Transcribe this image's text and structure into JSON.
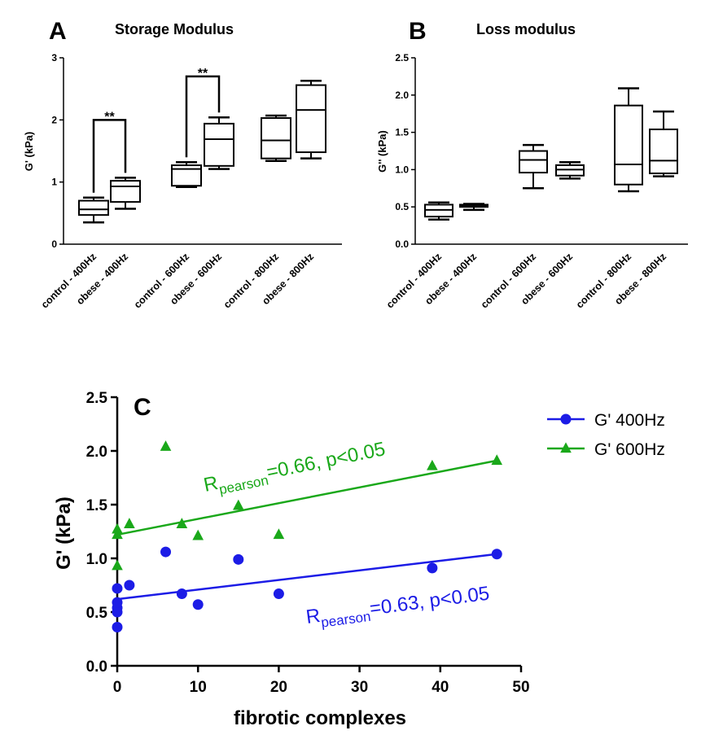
{
  "colors": {
    "g400": "#1c1ce6",
    "g600": "#1aa81a",
    "axis": "#000000"
  },
  "chart_data": [
    {
      "type": "box",
      "panel_letter": "A",
      "title": "Storage Modulus",
      "ylabel": "G' (kPa)",
      "ylim": [
        0,
        3
      ],
      "yticks": [
        0,
        1,
        2,
        3
      ],
      "ytick_labels": [
        "0",
        "1",
        "2",
        "3"
      ],
      "categories": [
        "control - 400Hz",
        "obese - 400Hz",
        "control - 600Hz",
        "obese - 600Hz",
        "control - 800Hz",
        "obese - 800Hz"
      ],
      "boxes": [
        {
          "min": 0.35,
          "q1": 0.47,
          "median": 0.56,
          "q3": 0.7,
          "max": 0.75
        },
        {
          "min": 0.57,
          "q1": 0.68,
          "median": 0.93,
          "q3": 1.02,
          "max": 1.07
        },
        {
          "min": 0.92,
          "q1": 0.94,
          "median": 1.21,
          "q3": 1.27,
          "max": 1.32
        },
        {
          "min": 1.21,
          "q1": 1.26,
          "median": 1.69,
          "q3": 1.94,
          "max": 2.04
        },
        {
          "min": 1.34,
          "q1": 1.38,
          "median": 1.67,
          "q3": 2.03,
          "max": 2.07
        },
        {
          "min": 1.38,
          "q1": 1.48,
          "median": 2.16,
          "q3": 2.56,
          "max": 2.63
        }
      ],
      "significance": [
        {
          "from": 0,
          "to": 1,
          "label": "**",
          "y": 2.0
        },
        {
          "from": 2,
          "to": 3,
          "label": "**",
          "y": 2.7
        }
      ]
    },
    {
      "type": "box",
      "panel_letter": "B",
      "title": "Loss modulus",
      "ylabel": "G'' (kPa)",
      "ylim": [
        0,
        2.5
      ],
      "yticks": [
        0,
        0.5,
        1.0,
        1.5,
        2.0,
        2.5
      ],
      "ytick_labels": [
        "0.0",
        "0.5",
        "1.0",
        "1.5",
        "2.0",
        "2.5"
      ],
      "categories": [
        "control - 400Hz",
        "obese - 400Hz",
        "control - 600Hz",
        "obese - 600Hz",
        "control - 800Hz",
        "obese - 800Hz"
      ],
      "boxes": [
        {
          "min": 0.33,
          "q1": 0.37,
          "median": 0.46,
          "q3": 0.53,
          "max": 0.56
        },
        {
          "min": 0.46,
          "q1": 0.5,
          "median": 0.52,
          "q3": 0.53,
          "max": 0.54
        },
        {
          "min": 0.75,
          "q1": 0.96,
          "median": 1.13,
          "q3": 1.25,
          "max": 1.33
        },
        {
          "min": 0.88,
          "q1": 0.92,
          "median": 1.0,
          "q3": 1.06,
          "max": 1.1
        },
        {
          "min": 0.71,
          "q1": 0.8,
          "median": 1.07,
          "q3": 1.86,
          "max": 2.09
        },
        {
          "min": 0.91,
          "q1": 0.95,
          "median": 1.12,
          "q3": 1.54,
          "max": 1.78
        }
      ]
    },
    {
      "type": "scatter",
      "panel_letter": "C",
      "xlabel": "fibrotic complexes",
      "ylabel": "G' (kPa)",
      "xlim": [
        0,
        50
      ],
      "ylim": [
        0,
        2.5
      ],
      "xticks": [
        0,
        10,
        20,
        30,
        40,
        50
      ],
      "xtick_labels": [
        "0",
        "10",
        "20",
        "30",
        "40",
        "50"
      ],
      "yticks": [
        0,
        0.5,
        1.0,
        1.5,
        2.0,
        2.5
      ],
      "ytick_labels": [
        "0.0",
        "0.5",
        "1.0",
        "1.5",
        "2.0",
        "2.5"
      ],
      "legend_position": "top-right",
      "series": [
        {
          "name": "G' 400Hz",
          "marker": "circle",
          "color_key": "g400",
          "x": [
            0,
            0,
            0,
            0,
            0,
            1.5,
            6,
            8,
            10,
            15,
            20,
            39,
            47
          ],
          "y": [
            0.36,
            0.5,
            0.54,
            0.59,
            0.72,
            0.75,
            1.06,
            0.67,
            0.57,
            0.99,
            0.67,
            0.91,
            1.04
          ],
          "fit": {
            "x": [
              0,
              47
            ],
            "y": [
              0.62,
              1.04
            ]
          },
          "annotation": {
            "prefix": "R",
            "subscript": "pearson",
            "text": "=0.63, p<0.05"
          }
        },
        {
          "name": "G' 600Hz",
          "marker": "triangle",
          "color_key": "g600",
          "x": [
            0,
            0,
            0,
            1.5,
            6,
            8,
            10,
            15,
            20,
            39,
            47
          ],
          "y": [
            0.93,
            1.22,
            1.27,
            1.32,
            2.04,
            1.32,
            1.21,
            1.49,
            1.22,
            1.86,
            1.91
          ],
          "fit": {
            "x": [
              0,
              47
            ],
            "y": [
              1.22,
              1.91
            ]
          },
          "annotation": {
            "prefix": "R",
            "subscript": "pearson",
            "text": "=0.66, p<0.05"
          }
        }
      ]
    }
  ]
}
